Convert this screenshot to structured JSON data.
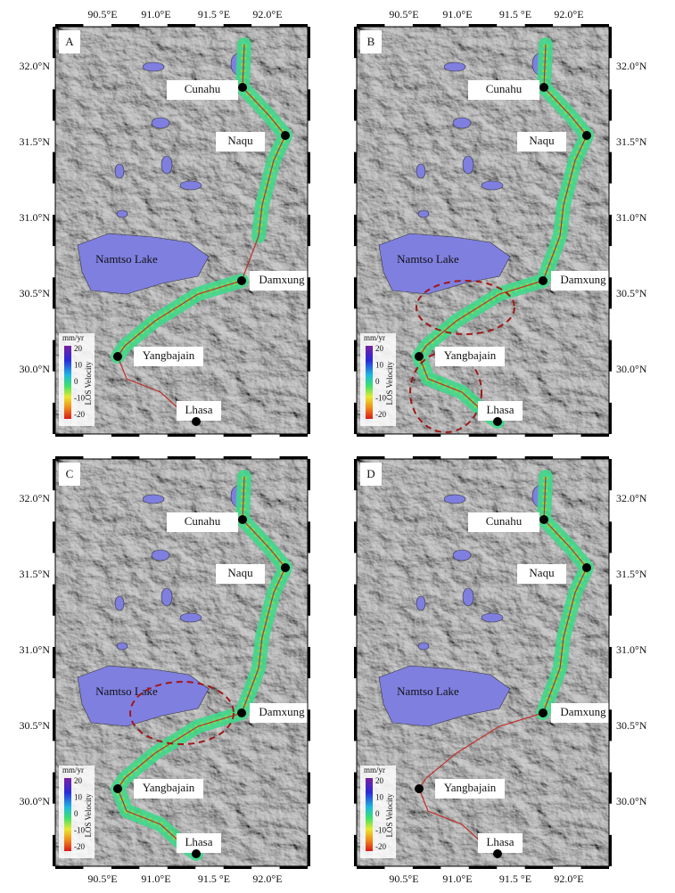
{
  "panels": [
    {
      "label": "A"
    },
    {
      "label": "B"
    },
    {
      "label": "C"
    },
    {
      "label": "D"
    }
  ],
  "lon_ticks": [
    "90.5°E",
    "91.0°E",
    "91.5 °E",
    "92.0°E"
  ],
  "lat_ticks": [
    "32.0°N",
    "31.5°N",
    "31.0°N",
    "30.5°N",
    "30.0°N"
  ],
  "places": {
    "cunahu": "Cunahu",
    "naqu": "Naqu",
    "damxung": "Damxung",
    "yangbajain": "Yangbajain",
    "lhasa": "Lhasa",
    "lake": "Namtso Lake"
  },
  "colorbar": {
    "unit": "mm/yr",
    "title": "LOS Velocity",
    "ticks": [
      20,
      10,
      0,
      -10,
      -20
    ]
  }
}
